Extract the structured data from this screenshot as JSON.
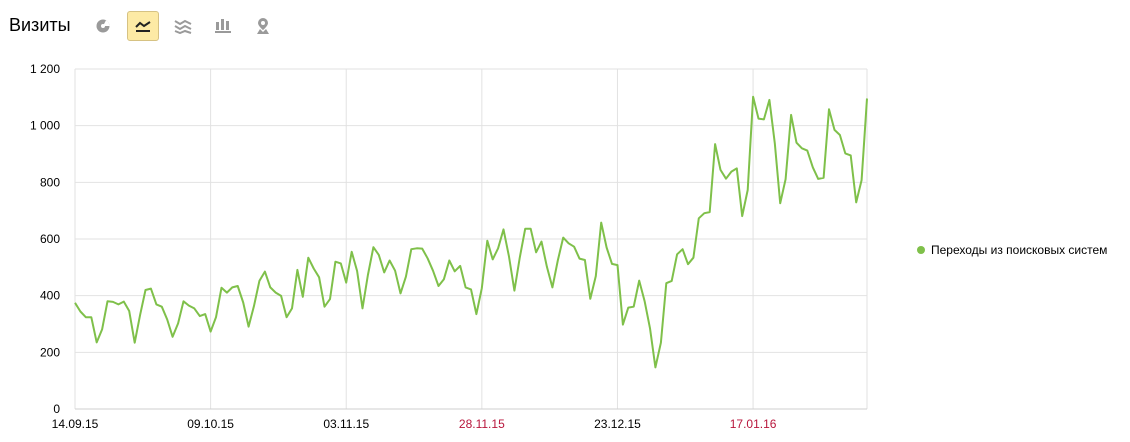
{
  "header": {
    "title": "Визиты",
    "views": [
      {
        "icon": "pie-chart-icon",
        "active": false
      },
      {
        "icon": "line-chart-icon",
        "active": true
      },
      {
        "icon": "area-chart-icon",
        "active": false
      },
      {
        "icon": "bar-chart-icon",
        "active": false
      },
      {
        "icon": "map-pin-icon",
        "active": false
      }
    ]
  },
  "colors": {
    "series": "#7fc04a",
    "grid": "#e2e2e2",
    "weekend": "#b8163c",
    "text": "#000000",
    "active_bg": "#fdeaa5"
  },
  "chart_data": {
    "type": "line",
    "title": "",
    "xlabel": "",
    "ylabel": "",
    "ylim": [
      0,
      1200
    ],
    "y_ticks": [
      "0",
      "200",
      "400",
      "600",
      "800",
      "1 000",
      "1 200"
    ],
    "y_tick_values": [
      0,
      200,
      400,
      600,
      800,
      1000,
      1200
    ],
    "x_ticks": [
      {
        "label": "14.09.15",
        "index": 0,
        "weekend": false
      },
      {
        "label": "09.10.15",
        "index": 25,
        "weekend": false
      },
      {
        "label": "03.11.15",
        "index": 50,
        "weekend": false
      },
      {
        "label": "28.11.15",
        "index": 75,
        "weekend": true
      },
      {
        "label": "23.12.15",
        "index": 100,
        "weekend": false
      },
      {
        "label": "17.01.16",
        "index": 125,
        "weekend": true
      }
    ],
    "grid": true,
    "legend_position": "right",
    "series": [
      {
        "name": "Переходы из поисковых систем",
        "values": [
          375,
          344,
          324,
          324,
          235,
          281,
          380,
          378,
          369,
          379,
          346,
          234,
          332,
          420,
          425,
          369,
          361,
          316,
          255,
          302,
          380,
          365,
          355,
          328,
          335,
          273,
          324,
          428,
          411,
          429,
          434,
          376,
          291,
          364,
          452,
          485,
          429,
          411,
          399,
          324,
          355,
          491,
          396,
          534,
          496,
          465,
          361,
          388,
          520,
          514,
          446,
          555,
          487,
          355,
          473,
          571,
          544,
          482,
          524,
          488,
          408,
          467,
          564,
          567,
          566,
          532,
          488,
          434,
          458,
          524,
          486,
          505,
          429,
          422,
          335,
          426,
          594,
          528,
          567,
          634,
          538,
          418,
          535,
          636,
          636,
          553,
          591,
          502,
          429,
          524,
          605,
          585,
          573,
          531,
          526,
          389,
          469,
          658,
          570,
          512,
          508,
          298,
          358,
          361,
          453,
          381,
          285,
          147,
          234,
          444,
          452,
          546,
          564,
          511,
          534,
          673,
          691,
          695,
          935,
          844,
          813,
          838,
          849,
          681,
          773,
          1102,
          1025,
          1022,
          1091,
          938,
          726,
          811,
          1038,
          940,
          920,
          912,
          853,
          812,
          816,
          1058,
          985,
          967,
          902,
          895,
          729,
          808,
          1096
        ]
      }
    ]
  }
}
